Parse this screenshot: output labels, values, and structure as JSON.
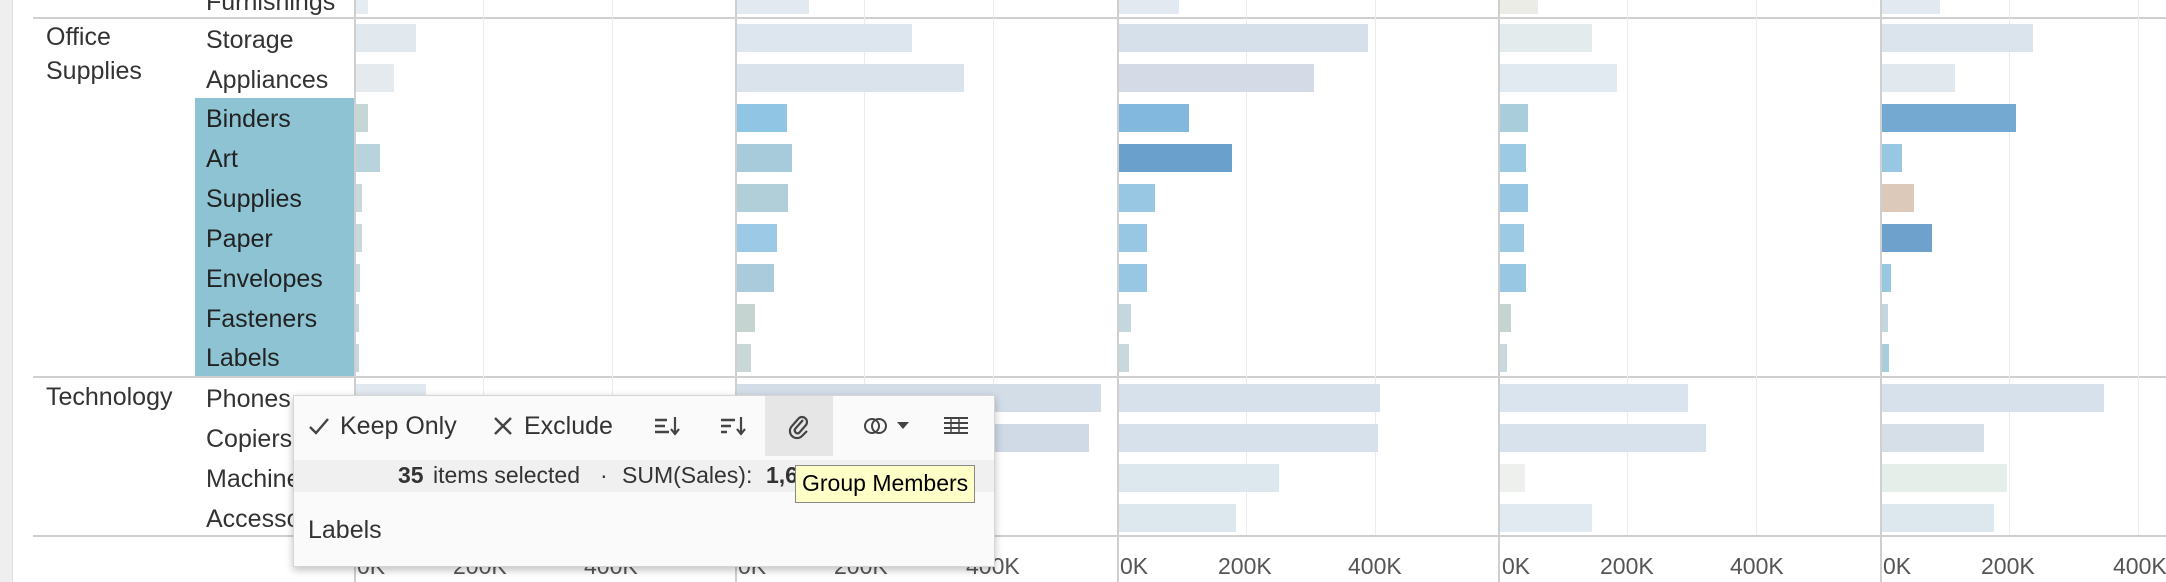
{
  "categories": {
    "office_supplies_line1": "Office",
    "office_supplies_line2": "Supplies",
    "technology": "Technology",
    "furnishings_partial": "Furnishings"
  },
  "subcategories": {
    "storage": "Storage",
    "appliances": "Appliances",
    "binders": "Binders",
    "art": "Art",
    "supplies": "Supplies",
    "paper": "Paper",
    "envelopes": "Envelopes",
    "fasteners": "Fasteners",
    "labels": "Labels",
    "phones": "Phones",
    "copiers": "Copiers",
    "machines": "Machine",
    "accessories": "Accesso"
  },
  "axis_ticks": [
    "0K",
    "200K",
    "400K"
  ],
  "tooltip": {
    "keep_only": "Keep Only",
    "exclude": "Exclude",
    "selected_count": "35",
    "selected_text": "items selected",
    "separator": "·",
    "sum_label": "SUM(Sales):",
    "sum_value": "1,6",
    "labels_field": "Labels",
    "hover_tip": "Group Members"
  },
  "colors": {
    "selection_highlight": "#8dc3d3",
    "tooltip_bg": "#ffffc8",
    "muted_bar": "#dbe4ec",
    "blue_mid": "#7fb4dc",
    "blue_dark": "#6a9ecb",
    "blue_light": "#97c7e3"
  },
  "icons": [
    "check-icon",
    "x-icon",
    "sort-ascending-icon",
    "sort-descending-icon",
    "paperclip-icon",
    "sets-icon",
    "chevron-down-icon",
    "view-data-icon"
  ]
}
